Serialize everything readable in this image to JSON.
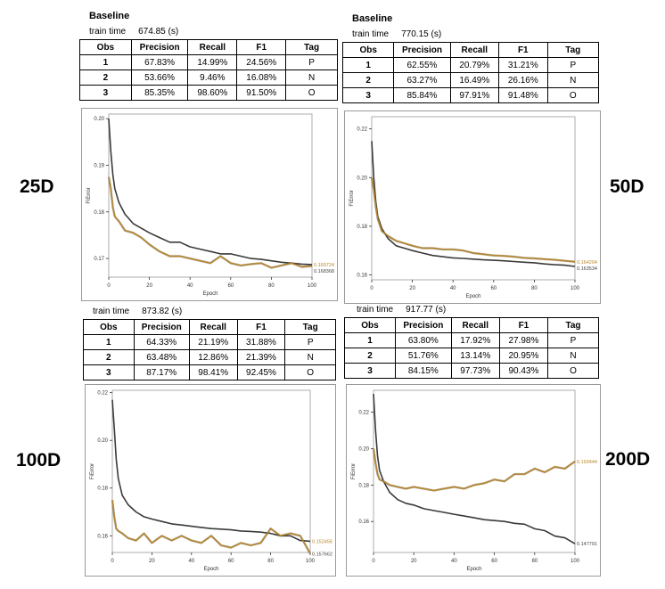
{
  "header": {
    "baseline": "Baseline",
    "train_time_label": "train time"
  },
  "columns": [
    "Obs",
    "Precision",
    "Recall",
    "F1",
    "Tag"
  ],
  "panels": [
    {
      "dim": "25D",
      "baseline": "Baseline",
      "train_time": "674.85 (s)",
      "rows": [
        [
          "1",
          "67.83%",
          "14.99%",
          "24.56%",
          "P"
        ],
        [
          "2",
          "53.66%",
          "9.46%",
          "16.08%",
          "N"
        ],
        [
          "3",
          "85.35%",
          "98.60%",
          "91.50%",
          "O"
        ]
      ]
    },
    {
      "dim": "50D",
      "baseline": "Baseline",
      "train_time": "770.15 (s)",
      "rows": [
        [
          "1",
          "62.55%",
          "20.79%",
          "31.21%",
          "P"
        ],
        [
          "2",
          "63.27%",
          "16.49%",
          "26.16%",
          "N"
        ],
        [
          "3",
          "85.84%",
          "97.91%",
          "91.48%",
          "O"
        ]
      ]
    },
    {
      "dim": "100D",
      "baseline": "",
      "train_time": "873.82 (s)",
      "rows": [
        [
          "1",
          "64.33%",
          "21.19%",
          "31.88%",
          "P"
        ],
        [
          "2",
          "63.48%",
          "12.86%",
          "21.39%",
          "N"
        ],
        [
          "3",
          "87.17%",
          "98.41%",
          "92.45%",
          "O"
        ]
      ]
    },
    {
      "dim": "200D",
      "baseline": "",
      "train_time": "917.77 (s)",
      "rows": [
        [
          "1",
          "63.80%",
          "17.92%",
          "27.98%",
          "P"
        ],
        [
          "2",
          "51.76%",
          "13.14%",
          "20.95%",
          "N"
        ],
        [
          "3",
          "84.15%",
          "97.73%",
          "90.43%",
          "O"
        ]
      ]
    }
  ],
  "colors": {
    "train_line": "#3a3a3a",
    "val_line": "#b8862b",
    "val_line_edge": "#6e5a2a",
    "axis": "#333333",
    "text": "#000000"
  },
  "chart_data": [
    {
      "type": "line",
      "xlabel": "Epoch",
      "ylabel": "FiError",
      "xlim": [
        0,
        100
      ],
      "ylim": [
        0.166,
        0.201
      ],
      "xticks": [
        0,
        20,
        40,
        60,
        80,
        100
      ],
      "yticks": [
        0.17,
        0.18,
        0.19,
        0.2
      ],
      "ytick_labels": [
        "0.17",
        "0.18",
        "0.19",
        "0.20"
      ],
      "x": [
        0,
        1,
        2,
        3,
        5,
        8,
        12,
        16,
        20,
        25,
        30,
        35,
        40,
        45,
        50,
        55,
        60,
        65,
        70,
        75,
        80,
        85,
        90,
        95,
        100
      ],
      "series": [
        {
          "values": [
            0.2,
            0.193,
            0.188,
            0.185,
            0.182,
            0.1795,
            0.1775,
            0.1765,
            0.1755,
            0.1745,
            0.1735,
            0.1735,
            0.1725,
            0.172,
            0.1715,
            0.171,
            0.171,
            0.1705,
            0.17,
            0.1698,
            0.1695,
            0.1692,
            0.169,
            0.1688,
            0.1687
          ]
        },
        {
          "values": [
            0.1875,
            0.185,
            0.181,
            0.179,
            0.178,
            0.176,
            0.1755,
            0.1745,
            0.173,
            0.1715,
            0.1705,
            0.1705,
            0.17,
            0.1695,
            0.169,
            0.1705,
            0.169,
            0.1685,
            0.1688,
            0.169,
            0.168,
            0.1685,
            0.169,
            0.1682,
            0.1684
          ]
        }
      ],
      "end_labels": [
        "0.169724",
        "0.168368"
      ]
    },
    {
      "type": "line",
      "xlabel": "Epoch",
      "ylabel": "FiError",
      "xlim": [
        0,
        100
      ],
      "ylim": [
        0.158,
        0.225
      ],
      "xticks": [
        0,
        20,
        40,
        60,
        80,
        100
      ],
      "yticks": [
        0.16,
        0.18,
        0.2,
        0.22
      ],
      "ytick_labels": [
        "0.16",
        "0.18",
        "0.20",
        "0.22"
      ],
      "x": [
        0,
        1,
        2,
        3,
        5,
        8,
        12,
        16,
        20,
        25,
        30,
        35,
        40,
        45,
        50,
        55,
        60,
        65,
        70,
        75,
        80,
        85,
        90,
        95,
        100
      ],
      "series": [
        {
          "values": [
            0.215,
            0.2,
            0.19,
            0.184,
            0.179,
            0.175,
            0.172,
            0.171,
            0.17,
            0.169,
            0.168,
            0.1675,
            0.167,
            0.1668,
            0.1665,
            0.1662,
            0.166,
            0.1658,
            0.1655,
            0.1652,
            0.165,
            0.1645,
            0.1642,
            0.164,
            0.1635
          ]
        },
        {
          "values": [
            0.2,
            0.195,
            0.188,
            0.183,
            0.178,
            0.176,
            0.174,
            0.173,
            0.172,
            0.171,
            0.171,
            0.1705,
            0.1705,
            0.17,
            0.169,
            0.1685,
            0.168,
            0.1678,
            0.1675,
            0.167,
            0.1668,
            0.1665,
            0.1662,
            0.1658,
            0.1654
          ]
        }
      ],
      "end_labels": [
        "0.164204",
        "0.163534"
      ]
    },
    {
      "type": "line",
      "xlabel": "Epoch",
      "ylabel": "FiError",
      "xlim": [
        0,
        100
      ],
      "ylim": [
        0.153,
        0.221
      ],
      "xticks": [
        0,
        20,
        40,
        60,
        80,
        100
      ],
      "yticks": [
        0.16,
        0.18,
        0.2,
        0.22
      ],
      "ytick_labels": [
        "0.16",
        "0.18",
        "0.20",
        "0.22"
      ],
      "x": [
        0,
        1,
        2,
        3,
        5,
        8,
        12,
        16,
        20,
        25,
        30,
        35,
        40,
        45,
        50,
        55,
        60,
        65,
        70,
        75,
        80,
        85,
        90,
        95,
        100
      ],
      "series": [
        {
          "values": [
            0.217,
            0.205,
            0.192,
            0.184,
            0.177,
            0.173,
            0.17,
            0.168,
            0.167,
            0.166,
            0.165,
            0.1645,
            0.164,
            0.1635,
            0.163,
            0.1628,
            0.1625,
            0.162,
            0.1618,
            0.1615,
            0.161,
            0.16,
            0.16,
            0.158,
            0.1577
          ]
        },
        {
          "values": [
            0.175,
            0.168,
            0.163,
            0.162,
            0.161,
            0.159,
            0.158,
            0.161,
            0.157,
            0.16,
            0.158,
            0.16,
            0.158,
            0.157,
            0.16,
            0.156,
            0.155,
            0.157,
            0.156,
            0.157,
            0.163,
            0.16,
            0.161,
            0.16,
            0.1525
          ]
        }
      ],
      "end_labels": [
        "0.152456",
        "0.157662"
      ]
    },
    {
      "type": "line",
      "xlabel": "Epoch",
      "ylabel": "FiError",
      "xlim": [
        0,
        100
      ],
      "ylim": [
        0.143,
        0.232
      ],
      "xticks": [
        0,
        20,
        40,
        60,
        80,
        100
      ],
      "yticks": [
        0.16,
        0.18,
        0.2,
        0.22
      ],
      "ytick_labels": [
        "0.16",
        "0.18",
        "0.20",
        "0.22"
      ],
      "x": [
        0,
        1,
        2,
        3,
        5,
        8,
        12,
        16,
        20,
        25,
        30,
        35,
        40,
        45,
        50,
        55,
        60,
        65,
        70,
        75,
        80,
        85,
        90,
        95,
        100
      ],
      "series": [
        {
          "values": [
            0.23,
            0.21,
            0.196,
            0.188,
            0.182,
            0.176,
            0.172,
            0.17,
            0.169,
            0.167,
            0.166,
            0.165,
            0.164,
            0.163,
            0.162,
            0.161,
            0.1605,
            0.16,
            0.159,
            0.1585,
            0.156,
            0.155,
            0.152,
            0.151,
            0.1478
          ]
        },
        {
          "values": [
            0.2,
            0.192,
            0.186,
            0.183,
            0.182,
            0.18,
            0.179,
            0.178,
            0.179,
            0.178,
            0.177,
            0.178,
            0.179,
            0.178,
            0.18,
            0.181,
            0.183,
            0.182,
            0.186,
            0.186,
            0.189,
            0.187,
            0.19,
            0.189,
            0.193
          ]
        }
      ],
      "end_labels": [
        "0.193444",
        "0.147791"
      ]
    }
  ]
}
